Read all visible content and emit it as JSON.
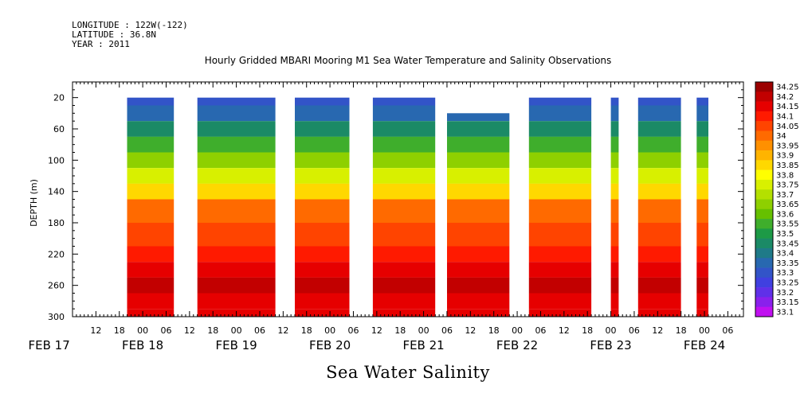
{
  "header": {
    "longitude": "LONGITUDE : 122W(-122)",
    "latitude": "LATITUDE : 36.8N",
    "year": "YEAR : 2011"
  },
  "chart_data": {
    "type": "heatmap",
    "title": "Hourly Gridded MBARI Mooring M1 Sea Water Temperature and Salinity Observations",
    "ylabel": "DEPTH (m)",
    "footer_label": "Sea Water Salinity",
    "y_axis": {
      "range": [
        300,
        0
      ],
      "inverted": true,
      "ticks": [
        20,
        60,
        100,
        140,
        180,
        220,
        260,
        300
      ]
    },
    "x_axis": {
      "range": [
        "2011-02-17T06:00",
        "2011-02-24T10:00"
      ],
      "hour_ticks": [
        {
          "t": "2011-02-17T12:00",
          "label": "12"
        },
        {
          "t": "2011-02-17T18:00",
          "label": "18"
        },
        {
          "t": "2011-02-18T00:00",
          "label": "00"
        },
        {
          "t": "2011-02-18T06:00",
          "label": "06"
        },
        {
          "t": "2011-02-18T12:00",
          "label": "12"
        },
        {
          "t": "2011-02-18T18:00",
          "label": "18"
        },
        {
          "t": "2011-02-19T00:00",
          "label": "00"
        },
        {
          "t": "2011-02-19T06:00",
          "label": "06"
        },
        {
          "t": "2011-02-19T12:00",
          "label": "12"
        },
        {
          "t": "2011-02-19T18:00",
          "label": "18"
        },
        {
          "t": "2011-02-20T00:00",
          "label": "00"
        },
        {
          "t": "2011-02-20T06:00",
          "label": "06"
        },
        {
          "t": "2011-02-20T12:00",
          "label": "12"
        },
        {
          "t": "2011-02-20T18:00",
          "label": "18"
        },
        {
          "t": "2011-02-21T00:00",
          "label": "00"
        },
        {
          "t": "2011-02-21T06:00",
          "label": "06"
        },
        {
          "t": "2011-02-21T12:00",
          "label": "12"
        },
        {
          "t": "2011-02-21T18:00",
          "label": "18"
        },
        {
          "t": "2011-02-22T00:00",
          "label": "00"
        },
        {
          "t": "2011-02-22T06:00",
          "label": "06"
        },
        {
          "t": "2011-02-22T12:00",
          "label": "12"
        },
        {
          "t": "2011-02-22T18:00",
          "label": "18"
        },
        {
          "t": "2011-02-23T00:00",
          "label": "00"
        },
        {
          "t": "2011-02-23T06:00",
          "label": "06"
        },
        {
          "t": "2011-02-23T12:00",
          "label": "12"
        },
        {
          "t": "2011-02-23T18:00",
          "label": "18"
        },
        {
          "t": "2011-02-24T00:00",
          "label": "00"
        },
        {
          "t": "2011-02-24T06:00",
          "label": "06"
        }
      ],
      "day_labels": [
        {
          "t": "2011-02-17T00:00",
          "label": "FEB 17"
        },
        {
          "t": "2011-02-18T00:00",
          "label": "FEB 18"
        },
        {
          "t": "2011-02-19T00:00",
          "label": "FEB 19"
        },
        {
          "t": "2011-02-20T00:00",
          "label": "FEB 20"
        },
        {
          "t": "2011-02-21T00:00",
          "label": "FEB 21"
        },
        {
          "t": "2011-02-22T00:00",
          "label": "FEB 22"
        },
        {
          "t": "2011-02-23T00:00",
          "label": "FEB 23"
        },
        {
          "t": "2011-02-24T00:00",
          "label": "FEB 24"
        }
      ]
    },
    "data_segments": [
      {
        "start": "2011-02-17T20:00",
        "end": "2011-02-18T08:00",
        "top_depth": 20
      },
      {
        "start": "2011-02-18T14:00",
        "end": "2011-02-19T10:00",
        "top_depth": 20
      },
      {
        "start": "2011-02-19T15:00",
        "end": "2011-02-20T05:00",
        "top_depth": 20
      },
      {
        "start": "2011-02-20T11:00",
        "end": "2011-02-21T03:00",
        "top_depth": 20
      },
      {
        "start": "2011-02-21T06:00",
        "end": "2011-02-21T22:00",
        "top_depth": 40
      },
      {
        "start": "2011-02-22T03:00",
        "end": "2011-02-22T19:00",
        "top_depth": 20
      },
      {
        "start": "2011-02-23T00:00",
        "end": "2011-02-23T02:00",
        "top_depth": 20
      },
      {
        "start": "2011-02-23T07:00",
        "end": "2011-02-23T18:00",
        "top_depth": 20
      },
      {
        "start": "2011-02-23T22:00",
        "end": "2011-02-24T01:00",
        "top_depth": 20
      }
    ],
    "depth_profile": [
      {
        "depth": 20,
        "salinity": 33.33
      },
      {
        "depth": 40,
        "salinity": 33.36
      },
      {
        "depth": 60,
        "salinity": 33.45
      },
      {
        "depth": 80,
        "salinity": 33.57
      },
      {
        "depth": 100,
        "salinity": 33.66
      },
      {
        "depth": 120,
        "salinity": 33.77
      },
      {
        "depth": 140,
        "salinity": 33.87
      },
      {
        "depth": 160,
        "salinity": 34.02
      },
      {
        "depth": 200,
        "salinity": 34.06
      },
      {
        "depth": 220,
        "salinity": 34.12
      },
      {
        "depth": 240,
        "salinity": 34.17
      },
      {
        "depth": 260,
        "salinity": 34.22
      },
      {
        "depth": 280,
        "salinity": 34.17
      },
      {
        "depth": 300,
        "salinity": 34.15
      }
    ],
    "color_scale": {
      "levels": [
        "34.25",
        "34.2",
        "34.15",
        "34.1",
        "34.05",
        "34",
        "33.95",
        "33.9",
        "33.85",
        "33.8",
        "33.75",
        "33.7",
        "33.65",
        "33.6",
        "33.55",
        "33.5",
        "33.45",
        "33.4",
        "33.35",
        "33.3",
        "33.25",
        "33.2",
        "33.15",
        "33.1"
      ],
      "colors": [
        "#9b0000",
        "#c20000",
        "#e60000",
        "#ff1a00",
        "#ff4400",
        "#ff6a00",
        "#ff9000",
        "#ffb400",
        "#ffd800",
        "#ffff00",
        "#d8f000",
        "#b4e000",
        "#8ed000",
        "#66c000",
        "#3fae2c",
        "#1d9a46",
        "#1b8a66",
        "#1f7a88",
        "#2868b0",
        "#3254c8",
        "#4040e0",
        "#6030e8",
        "#8a20ec",
        "#c010f0"
      ]
    }
  }
}
